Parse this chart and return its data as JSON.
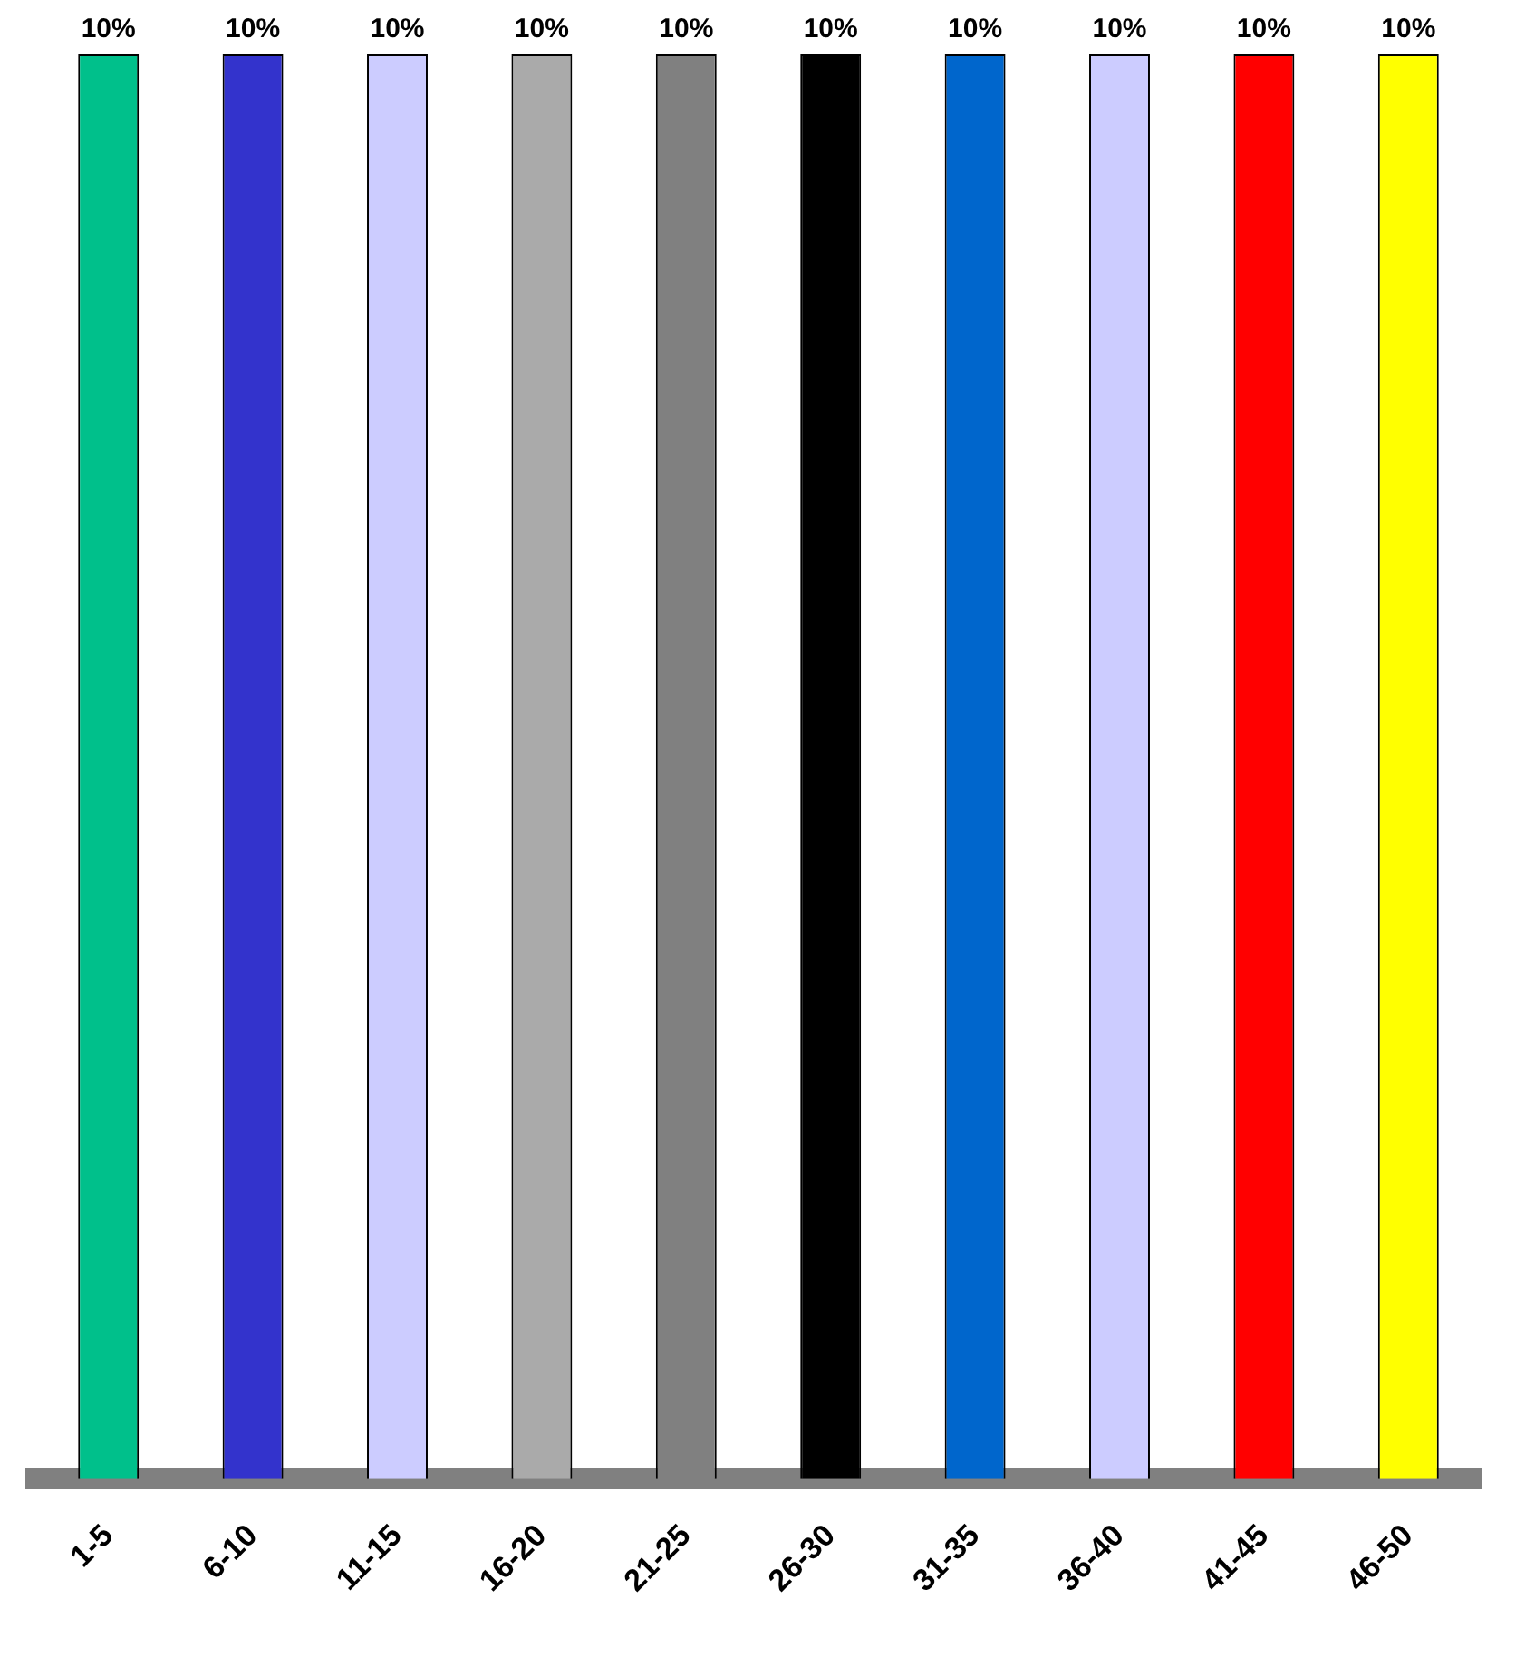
{
  "chart_data": {
    "type": "bar",
    "categories": [
      "1-5",
      "6-10",
      "11-15",
      "16-20",
      "21-25",
      "26-30",
      "31-35",
      "36-40",
      "41-45",
      "46-50"
    ],
    "values": [
      10,
      10,
      10,
      10,
      10,
      10,
      10,
      10,
      10,
      10
    ],
    "value_labels": [
      "10%",
      "10%",
      "10%",
      "10%",
      "10%",
      "10%",
      "10%",
      "10%",
      "10%",
      "10%"
    ],
    "colors": [
      "#00c08b",
      "#3333cc",
      "#ccccff",
      "#aaaaaa",
      "#808080",
      "#000000",
      "#0066cc",
      "#ccccff",
      "#ff0000",
      "#ffff00"
    ],
    "grid": false,
    "legend": false
  }
}
